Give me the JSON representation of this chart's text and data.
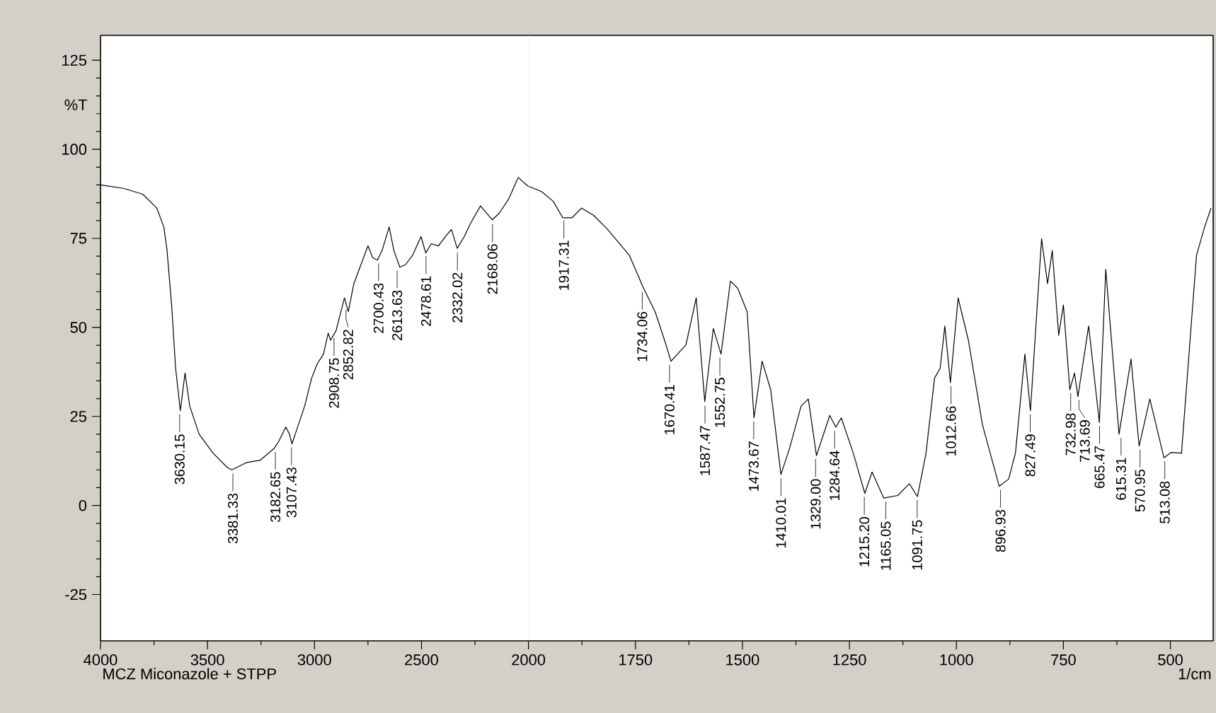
{
  "chart_data": [
    {
      "type": "line",
      "ylabel": "%T",
      "color": "#000000",
      "xlim": [
        4000,
        2000
      ],
      "ylim": [
        -38,
        132
      ],
      "xticks": [
        4000,
        3500,
        3000,
        2500,
        2000
      ],
      "yticks": [
        -25,
        0,
        25,
        50,
        75,
        100,
        125
      ],
      "x": [
        4000,
        3890,
        3803,
        3737,
        3704,
        3689,
        3667,
        3649,
        3627,
        3605,
        3583,
        3539,
        3474,
        3408,
        3386,
        3320,
        3254,
        3189,
        3167,
        3134,
        3118,
        3105,
        3083,
        3046,
        3013,
        2987,
        2958,
        2936,
        2925,
        2899,
        2871,
        2860,
        2842,
        2816,
        2783,
        2750,
        2728,
        2706,
        2684,
        2651,
        2629,
        2601,
        2575,
        2542,
        2502,
        2480,
        2454,
        2421,
        2388,
        2360,
        2333,
        2300,
        2268,
        2224,
        2169,
        2136,
        2092,
        2048,
        2022,
        2000
      ],
      "values": [
        90,
        89,
        87.4,
        83.5,
        78.2,
        71.6,
        55.7,
        38.5,
        26.6,
        37.2,
        27.9,
        20,
        14.7,
        10.7,
        10,
        12,
        12.7,
        16,
        18,
        22,
        20.2,
        17.3,
        21.3,
        27.9,
        35.8,
        39.8,
        42.5,
        48.4,
        46.4,
        49.1,
        55.7,
        58.3,
        54.4,
        62.3,
        67.6,
        72.9,
        69.6,
        68.9,
        71.6,
        78.2,
        71.6,
        66.9,
        67.6,
        70.2,
        75.5,
        70.9,
        73.5,
        72.9,
        75.5,
        77.5,
        72.2,
        75.5,
        79.5,
        84.1,
        80.2,
        82.1,
        86.1,
        92.1,
        90.7,
        89.6
      ],
      "annotations": [
        {
          "text": "3630.15",
          "x": 3630.15,
          "y": 26.6
        },
        {
          "text": "3381.33",
          "x": 3381.33,
          "y": 10
        },
        {
          "text": "3182.65",
          "x": 3182.65,
          "y": 16
        },
        {
          "text": "3107.43",
          "x": 3107.43,
          "y": 17.3
        },
        {
          "text": "2908.75",
          "x": 2908.75,
          "y": 48
        },
        {
          "text": "2852.82",
          "x": 2852.82,
          "y": 56
        },
        {
          "text": "2700.43",
          "x": 2700.43,
          "y": 69
        },
        {
          "text": "2613.63",
          "x": 2613.63,
          "y": 67
        },
        {
          "text": "2478.61",
          "x": 2478.61,
          "y": 71
        },
        {
          "text": "2332.02",
          "x": 2332.02,
          "y": 72
        },
        {
          "text": "2168.06",
          "x": 2168.06,
          "y": 80
        },
        "MCZ Miconazole + STPP"
      ]
    },
    {
      "type": "line",
      "xlabel": "1/cm",
      "color": "#000000",
      "tick_labels": "x",
      "xlim": [
        2000,
        400
      ],
      "ylim": [
        -38,
        132
      ],
      "xticks": [
        1750,
        1500,
        1250,
        1000,
        750,
        500
      ],
      "x": [
        2000,
        1995,
        1969,
        1942,
        1920,
        1898,
        1876,
        1848,
        1815,
        1764,
        1731,
        1704,
        1682,
        1667,
        1632,
        1608,
        1588,
        1568,
        1550,
        1528,
        1511,
        1489,
        1473,
        1454,
        1434,
        1410,
        1390,
        1363,
        1346,
        1327,
        1296,
        1282,
        1269,
        1241,
        1214,
        1197,
        1170,
        1137,
        1110,
        1091,
        1071,
        1051,
        1038,
        1027,
        1014,
        996,
        972,
        939,
        900,
        878,
        862,
        840,
        827,
        801,
        787,
        776,
        761,
        750,
        735,
        724,
        716,
        691,
        666,
        651,
        620,
        592,
        573,
        548,
        515,
        498,
        474,
        439,
        420,
        405
      ],
      "values": [
        89.6,
        89.4,
        88.1,
        85.4,
        80.8,
        80.8,
        83.5,
        81.5,
        77.5,
        70.2,
        61,
        54.4,
        46.4,
        40.5,
        45.1,
        58.3,
        29.2,
        49.7,
        42.5,
        63,
        61,
        54.4,
        24.6,
        40.5,
        32.5,
        8.7,
        16,
        27.9,
        29.9,
        14,
        25.3,
        22,
        24.6,
        14.7,
        3.4,
        9.4,
        2.1,
        2.8,
        6.1,
        2.5,
        14.7,
        35.8,
        38.5,
        50.4,
        34.5,
        58.3,
        46.4,
        22.6,
        5.4,
        7.4,
        14.7,
        42.5,
        26.6,
        74.9,
        62.3,
        71.6,
        47.8,
        56.3,
        32.5,
        37.2,
        30.6,
        50.4,
        23.3,
        66.3,
        20,
        41.1,
        16.7,
        29.9,
        13.4,
        14.9,
        14.7,
        70.2,
        78.2,
        83.5
      ],
      "annotations": [
        {
          "text": "1917.31",
          "x": 1917.31,
          "y": 81
        },
        {
          "text": "1734.06",
          "x": 1734.06,
          "y": 61
        },
        {
          "text": "1670.41",
          "x": 1670.41,
          "y": 40.5
        },
        {
          "text": "1587.47",
          "x": 1587.47,
          "y": 29
        },
        {
          "text": "1552.75",
          "x": 1552.75,
          "y": 42.5
        },
        {
          "text": "1473.67",
          "x": 1473.67,
          "y": 24.6
        },
        {
          "text": "1410.01",
          "x": 1410.01,
          "y": 8.7
        },
        {
          "text": "1329.00",
          "x": 1329.0,
          "y": 14
        },
        {
          "text": "1284.64",
          "x": 1284.64,
          "y": 22
        },
        {
          "text": "1215.20",
          "x": 1215.2,
          "y": 3.4
        },
        {
          "text": "1165.05",
          "x": 1165.05,
          "y": 2.1
        },
        {
          "text": "1091.75",
          "x": 1091.75,
          "y": 2.5
        },
        {
          "text": "1012.66",
          "x": 1012.66,
          "y": 34.5
        },
        {
          "text": "896.93",
          "x": 896.93,
          "y": 5.4
        },
        {
          "text": "827.49",
          "x": 827.49,
          "y": 26.6
        },
        {
          "text": "732.98",
          "x": 732.98,
          "y": 32.5
        },
        {
          "text": "713.69",
          "x": 713.69,
          "y": 30.6
        },
        {
          "text": "665.47",
          "x": 665.47,
          "y": 23.3
        },
        {
          "text": "615.31",
          "x": 615.31,
          "y": 20
        },
        {
          "text": "570.95",
          "x": 570.95,
          "y": 16.7
        },
        {
          "text": "513.08",
          "x": 513.08,
          "y": 13.4
        }
      ]
    }
  ]
}
